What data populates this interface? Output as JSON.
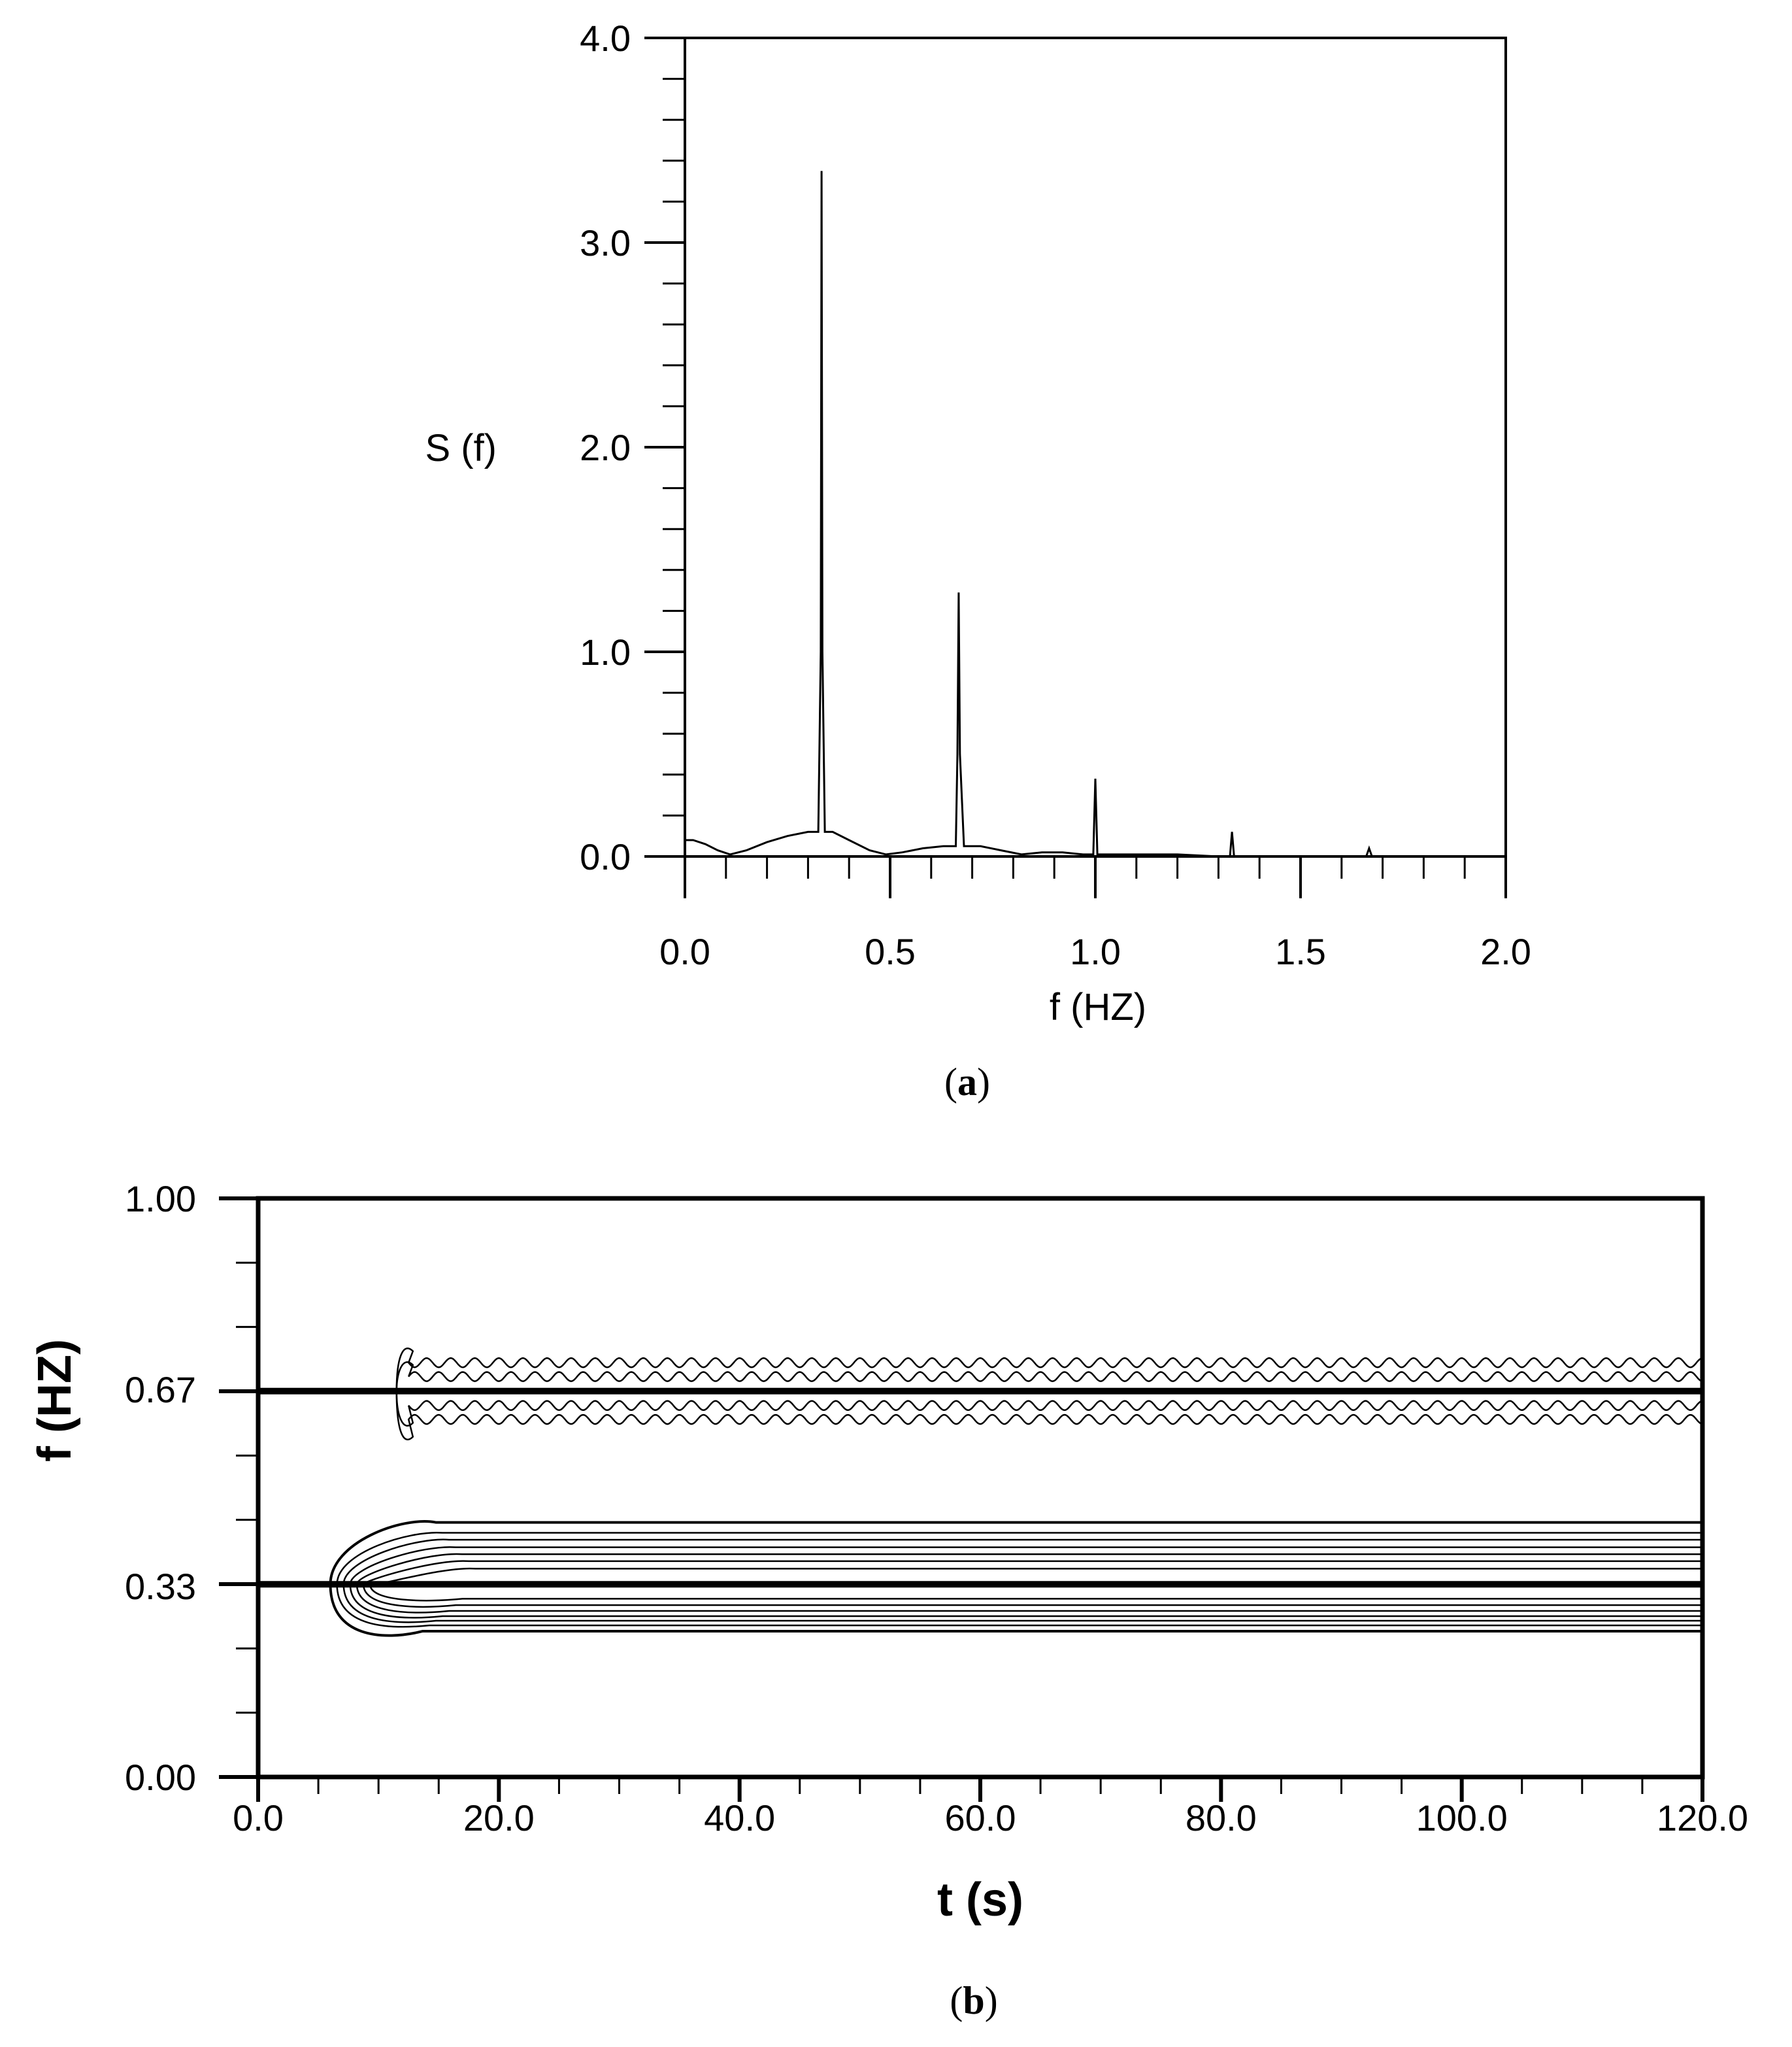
{
  "chart_data": [
    {
      "type": "line",
      "panel": "(a)",
      "caption_open": "(",
      "caption_letter": "a",
      "caption_close": ")",
      "xlabel": "f (HZ)",
      "ylabel": "S (f)",
      "xlim": [
        0.0,
        2.0
      ],
      "ylim": [
        0.0,
        4.0
      ],
      "x_ticks": [
        "0.0",
        "0.5",
        "1.0",
        "1.5",
        "2.0"
      ],
      "y_ticks": [
        "0.0",
        "1.0",
        "2.0",
        "3.0",
        "4.0"
      ],
      "grid": false,
      "series": [
        {
          "x": [
            0.0,
            0.02,
            0.05,
            0.08,
            0.11,
            0.15,
            0.2,
            0.25,
            0.3,
            0.325,
            0.331,
            0.333,
            0.335,
            0.341,
            0.36,
            0.4,
            0.45,
            0.49,
            0.53,
            0.58,
            0.63,
            0.66,
            0.664,
            0.667,
            0.67,
            0.68,
            0.72,
            0.77,
            0.82,
            0.87,
            0.92,
            0.97,
            0.995,
            1.0,
            1.005,
            1.05,
            1.1,
            1.2,
            1.3,
            1.328,
            1.333,
            1.338,
            1.45,
            1.6,
            1.66,
            1.667,
            1.674,
            1.8,
            2.0
          ],
          "y": [
            0.08,
            0.08,
            0.06,
            0.03,
            0.01,
            0.03,
            0.07,
            0.1,
            0.12,
            0.12,
            1.0,
            3.35,
            1.0,
            0.12,
            0.12,
            0.08,
            0.03,
            0.01,
            0.02,
            0.04,
            0.05,
            0.05,
            0.5,
            1.29,
            0.5,
            0.05,
            0.05,
            0.03,
            0.01,
            0.02,
            0.02,
            0.01,
            0.01,
            0.38,
            0.01,
            0.01,
            0.01,
            0.01,
            0.0,
            0.0,
            0.12,
            0.0,
            0.0,
            0.0,
            0.0,
            0.04,
            0.0,
            0.0,
            0.0
          ]
        }
      ]
    },
    {
      "type": "contour",
      "panel": "(b)",
      "caption_open": "(",
      "caption_letter": "b",
      "caption_close": ")",
      "xlabel": "t (s)",
      "ylabel": "f (HZ)",
      "xlim": [
        0.0,
        120.0
      ],
      "ylim": [
        0.0,
        1.0
      ],
      "x_ticks": [
        "0.0",
        "20.0",
        "40.0",
        "60.0",
        "80.0",
        "100.0",
        "120.0"
      ],
      "y_ticks": [
        "0.00",
        "0.33",
        "0.67",
        "1.00"
      ],
      "grid": false,
      "reference_lines_f": [
        0.333,
        0.667
      ],
      "contours_0_33": {
        "onset_t": 6.0,
        "levels_f": [
          [
            0.308,
            0.36
          ],
          [
            0.297,
            0.373
          ],
          [
            0.287,
            0.385
          ],
          [
            0.278,
            0.397
          ],
          [
            0.27,
            0.41
          ],
          [
            0.262,
            0.422
          ],
          [
            0.252,
            0.44
          ]
        ]
      },
      "contours_0_67": {
        "onset_t": 11.5,
        "wave_period_s": 2.0,
        "inner_band_f": [
          0.642,
          0.692
        ],
        "outer_band_f": [
          0.618,
          0.716
        ]
      }
    }
  ]
}
